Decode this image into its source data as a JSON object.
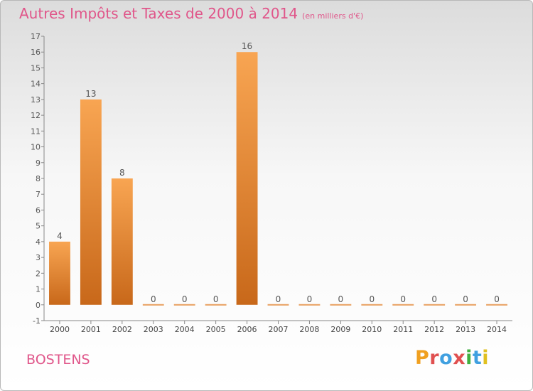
{
  "header": {
    "title": "Autres Impôts et Taxes de 2000 à 2014",
    "unit": "(en milliers d'€)"
  },
  "footer": {
    "commune": "BOSTENS",
    "logo_text": "Proxiti",
    "logo_colors": [
      "#f0a020",
      "#e05050",
      "#40a0e0",
      "#e05050",
      "#40b040",
      "#40a0e0",
      "#e0c020"
    ]
  },
  "chart_data": {
    "type": "bar",
    "categories": [
      "2000",
      "2001",
      "2002",
      "2003",
      "2004",
      "2005",
      "2006",
      "2007",
      "2008",
      "2009",
      "2010",
      "2011",
      "2012",
      "2013",
      "2014"
    ],
    "values": [
      4,
      13,
      8,
      0,
      0,
      0,
      16,
      0,
      0,
      0,
      0,
      0,
      0,
      0,
      0
    ],
    "title": "Autres Impôts et Taxes de 2000 à 2014",
    "ylim": [
      -1,
      17
    ],
    "yticks": [
      -1,
      0,
      1,
      2,
      3,
      4,
      5,
      6,
      7,
      8,
      9,
      10,
      11,
      12,
      13,
      14,
      15,
      16,
      17
    ],
    "grid": false,
    "bar_color_top": "#f8a552",
    "bar_color_bottom": "#c8681a"
  }
}
